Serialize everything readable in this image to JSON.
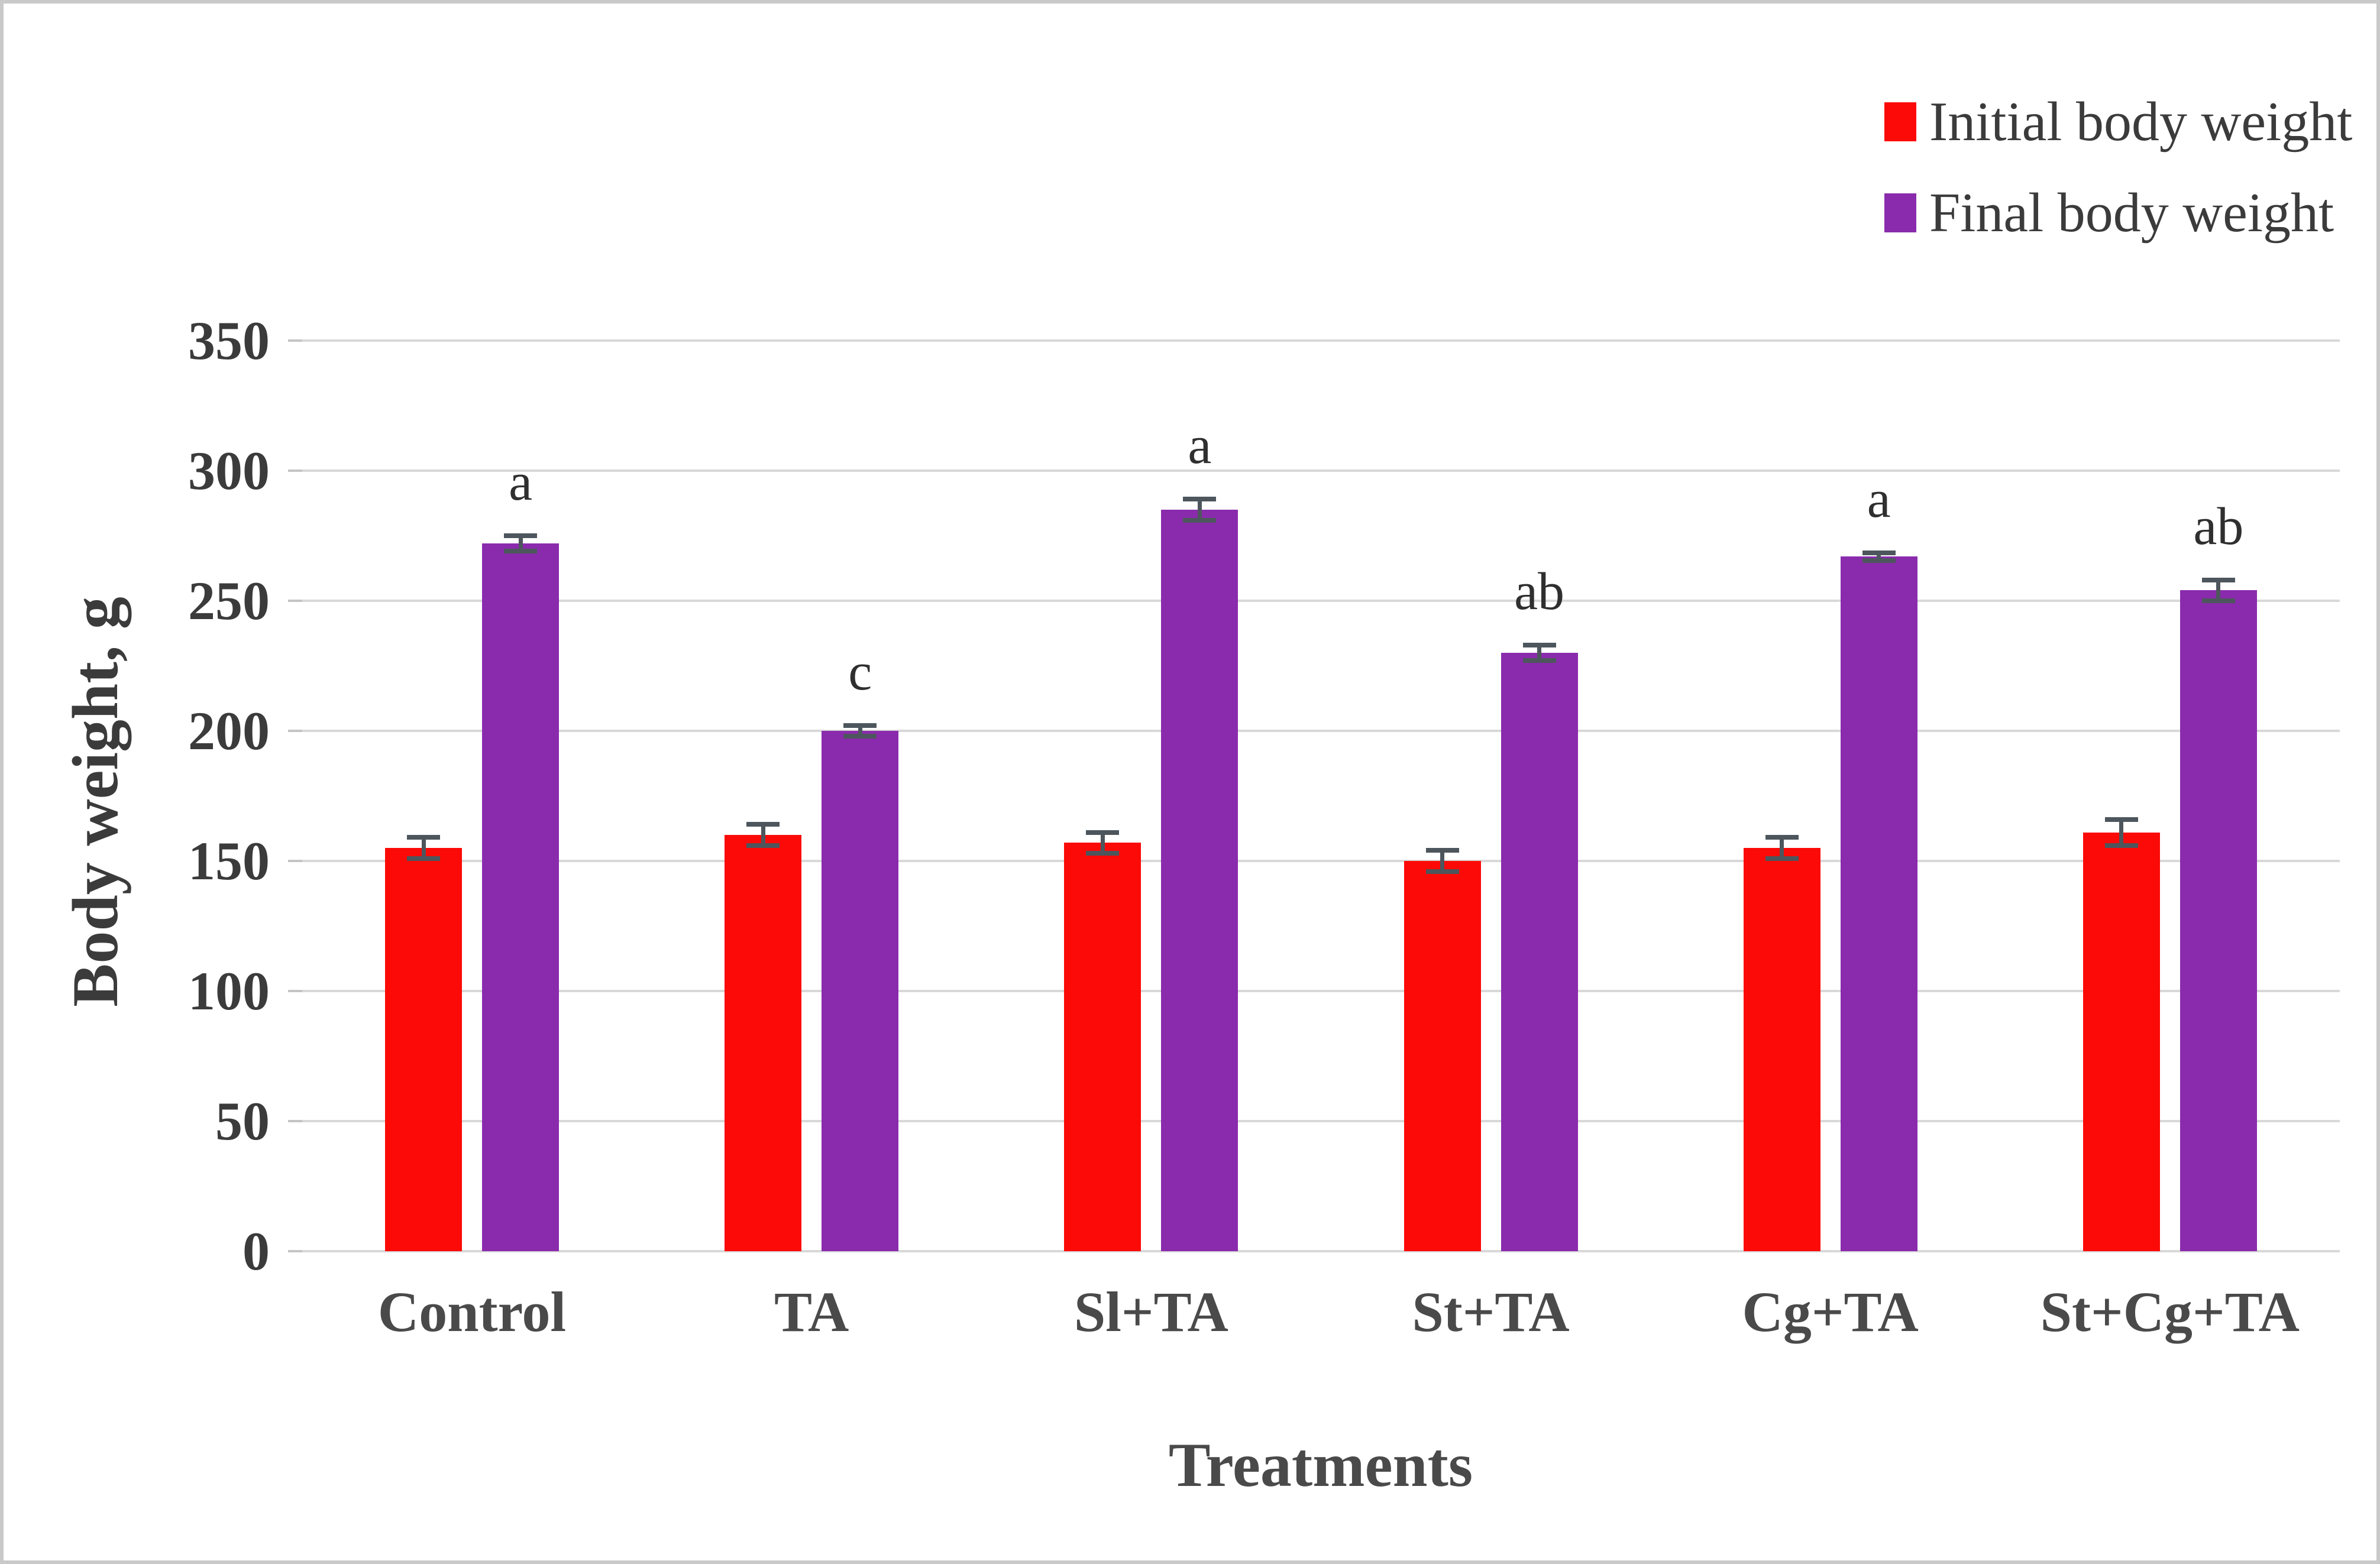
{
  "chart_data": {
    "type": "bar",
    "title": "",
    "categories": [
      "Control",
      "TA",
      "Sl+TA",
      "St+TA",
      "Cg+TA",
      "St+Cg+TA"
    ],
    "series": [
      {
        "name": "Initial body weight",
        "color": "#fb0a07",
        "values": [
          155,
          160,
          157,
          150,
          155,
          161
        ],
        "errors": [
          4,
          4,
          4,
          4,
          4,
          5
        ]
      },
      {
        "name": "Final body weight",
        "color": "#8a2bad",
        "values": [
          272,
          200,
          285,
          230,
          267,
          254
        ],
        "errors": [
          3,
          2,
          4,
          3,
          1.5,
          4
        ],
        "sig_letters": [
          "a",
          "c",
          "a",
          "ab",
          "a",
          "ab"
        ]
      }
    ],
    "xlabel": "Treatments",
    "ylabel": "Body weight, g",
    "ylim": [
      0,
      350
    ],
    "y_ticks": [
      0,
      50,
      100,
      150,
      200,
      250,
      300,
      350
    ],
    "grid": true,
    "legend_position": "top-right"
  },
  "colors": {
    "gridline": "#d8d8d8",
    "error_bar": "#4d565c",
    "axis_text": "#3b3b3b",
    "figure_border": "#c9c9c9"
  }
}
